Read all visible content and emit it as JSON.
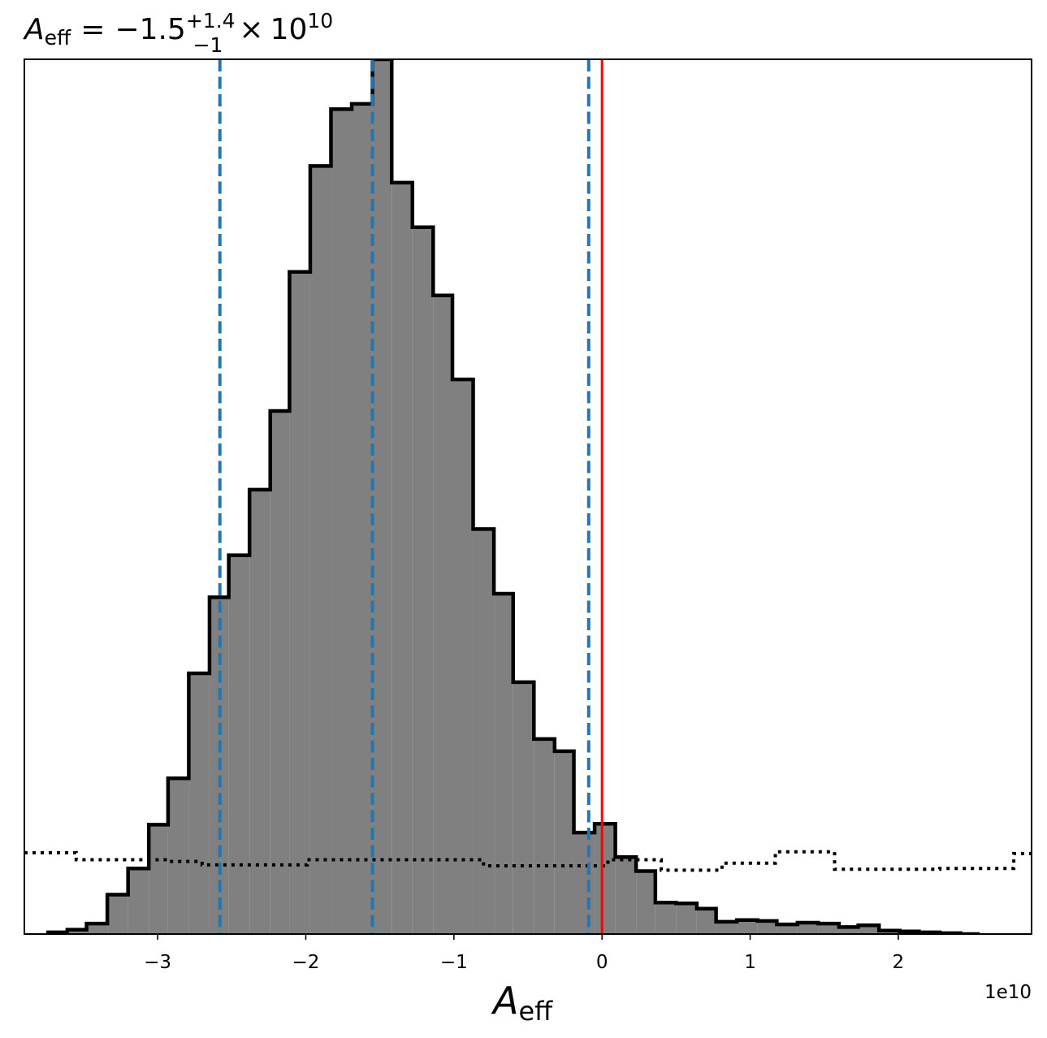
{
  "chart_data": {
    "type": "histogram",
    "title": {
      "symbol": "A",
      "subscript": "eff",
      "equals": "=",
      "median": "−1.5",
      "upper_error": "+1.4",
      "lower_error": "−1",
      "times": "×",
      "base": "10",
      "exponent": "10"
    },
    "xlabel": {
      "symbol": "A",
      "subscript": "eff"
    },
    "ylabel": "",
    "x_offset_text": "1e10",
    "x_scale": 10000000000.0,
    "xlim": [
      -39000000000.0,
      29000000000.0
    ],
    "ylim": [
      0,
      1.0
    ],
    "x_ticks": [
      -3,
      -2,
      -1,
      0,
      1,
      2
    ],
    "x_tick_labels": [
      "−3",
      "−2",
      "−1",
      "0",
      "1",
      "2"
    ],
    "y_ticks_shown": false,
    "grid": false,
    "bin_edges": [
      -3.74,
      -3.61,
      -3.48,
      -3.34,
      -3.2,
      -3.06,
      -2.93,
      -2.79,
      -2.65,
      -2.52,
      -2.38,
      -2.24,
      -2.11,
      -1.97,
      -1.83,
      -1.69,
      -1.55,
      -1.42,
      -1.28,
      -1.14,
      -1.01,
      -0.87,
      -0.73,
      -0.6,
      -0.46,
      -0.32,
      -0.19,
      -0.05,
      0.09,
      0.23,
      0.36,
      0.5,
      0.64,
      0.77,
      0.91,
      1.05,
      1.18,
      1.32,
      1.46,
      1.6,
      1.73,
      1.87,
      2.01,
      2.14,
      2.28,
      2.42,
      2.55
    ],
    "posterior_counts": [
      0.002,
      0.005,
      0.012,
      0.045,
      0.075,
      0.125,
      0.178,
      0.298,
      0.385,
      0.433,
      0.508,
      0.598,
      0.757,
      0.878,
      0.943,
      0.949,
      1.0,
      0.859,
      0.808,
      0.73,
      0.634,
      0.463,
      0.389,
      0.288,
      0.223,
      0.209,
      0.116,
      0.126,
      0.088,
      0.072,
      0.036,
      0.035,
      0.029,
      0.014,
      0.016,
      0.015,
      0.011,
      0.013,
      0.012,
      0.008,
      0.01,
      0.004,
      0.003,
      0.002,
      0.001,
      0.0
    ],
    "prior_steps": [
      {
        "x": [
          -3.9,
          -3.55
        ],
        "y": 0.093
      },
      {
        "x": [
          -3.55,
          -2.92
        ],
        "y": 0.085
      },
      {
        "x": [
          -2.92,
          -2.7
        ],
        "y": 0.083
      },
      {
        "x": [
          -2.7,
          -1.99
        ],
        "y": 0.079
      },
      {
        "x": [
          -1.99,
          -0.8
        ],
        "y": 0.085
      },
      {
        "x": [
          -0.8,
          0.04
        ],
        "y": 0.078
      },
      {
        "x": [
          0.04,
          0.4
        ],
        "y": 0.085
      },
      {
        "x": [
          0.4,
          0.81
        ],
        "y": 0.073
      },
      {
        "x": [
          0.81,
          1.17
        ],
        "y": 0.081
      },
      {
        "x": [
          1.17,
          1.57
        ],
        "y": 0.094
      },
      {
        "x": [
          1.57,
          2.28
        ],
        "y": 0.074
      },
      {
        "x": [
          2.28,
          2.78
        ],
        "y": 0.075
      },
      {
        "x": [
          2.78,
          2.9
        ],
        "y": 0.092
      }
    ],
    "quantile_lines": [
      -2.58,
      -1.55,
      -0.09
    ],
    "truth_line": 0.0,
    "colors": {
      "posterior_fill": "#808080",
      "posterior_edge": "#000000",
      "quantile": "#1f77b4",
      "truth": "#ff0000",
      "prior": "#000000"
    }
  }
}
